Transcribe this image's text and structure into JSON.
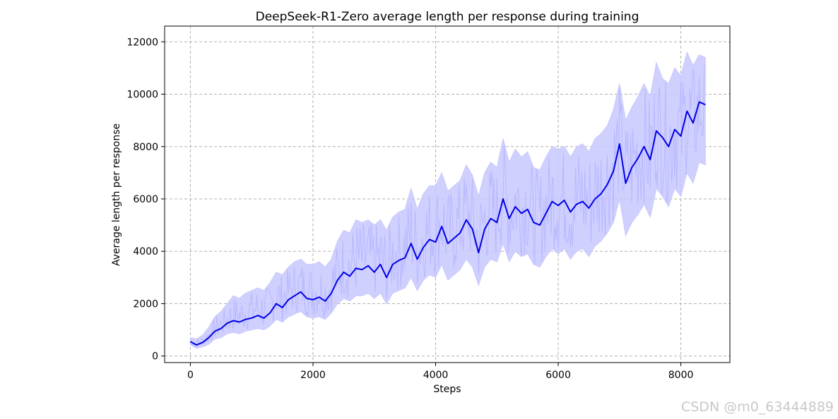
{
  "watermark": "CSDN @m0_63444889",
  "chart_data": {
    "type": "line",
    "title": "DeepSeek-R1-Zero average length per response during training",
    "xlabel": "Steps",
    "ylabel": "Average length per response",
    "xlim": [
      -420,
      8800
    ],
    "ylim": [
      -250,
      12600
    ],
    "xticks": [
      0,
      2000,
      4000,
      6000,
      8000
    ],
    "yticks": [
      0,
      2000,
      4000,
      6000,
      8000,
      10000,
      12000
    ],
    "grid": true,
    "colors": {
      "smoothed": "#0000e6",
      "band": "#c8c8ff",
      "grid": "#b0b0b0"
    },
    "series": [
      {
        "role": "smoothed",
        "x": [
          0,
          100,
          200,
          300,
          400,
          500,
          600,
          700,
          800,
          900,
          1000,
          1100,
          1200,
          1300,
          1400,
          1500,
          1600,
          1700,
          1800,
          1900,
          2000,
          2100,
          2200,
          2300,
          2400,
          2500,
          2600,
          2700,
          2800,
          2900,
          3000,
          3100,
          3200,
          3300,
          3400,
          3500,
          3600,
          3700,
          3800,
          3900,
          4000,
          4100,
          4200,
          4300,
          4400,
          4500,
          4600,
          4700,
          4800,
          4900,
          5000,
          5100,
          5200,
          5300,
          5400,
          5500,
          5600,
          5700,
          5800,
          5900,
          6000,
          6100,
          6200,
          6300,
          6400,
          6500,
          6600,
          6700,
          6800,
          6900,
          7000,
          7100,
          7200,
          7300,
          7400,
          7500,
          7600,
          7700,
          7800,
          7900,
          8000,
          8100,
          8200,
          8300,
          8400
        ],
        "y": [
          550,
          420,
          520,
          700,
          950,
          1050,
          1250,
          1350,
          1300,
          1400,
          1450,
          1550,
          1450,
          1650,
          2000,
          1850,
          2150,
          2300,
          2450,
          2200,
          2150,
          2250,
          2100,
          2400,
          2900,
          3200,
          3050,
          3350,
          3300,
          3450,
          3200,
          3500,
          3000,
          3500,
          3650,
          3750,
          4300,
          3700,
          4150,
          4450,
          4350,
          4950,
          4300,
          4500,
          4700,
          5200,
          4850,
          3950,
          4850,
          5250,
          5100,
          6000,
          5250,
          5700,
          5450,
          5600,
          5100,
          5000,
          5450,
          5900,
          5750,
          5950,
          5500,
          5800,
          5900,
          5650,
          6000,
          6200,
          6550,
          7050,
          8100,
          6600,
          7200,
          7550,
          8000,
          7500,
          8600,
          8350,
          8000,
          8650,
          8400,
          9350,
          8900,
          9700,
          9600
        ]
      },
      {
        "role": "band",
        "x": [
          0,
          100,
          200,
          300,
          400,
          500,
          600,
          700,
          800,
          900,
          1000,
          1100,
          1200,
          1300,
          1400,
          1500,
          1600,
          1700,
          1800,
          1900,
          2000,
          2100,
          2200,
          2300,
          2400,
          2500,
          2600,
          2700,
          2800,
          2900,
          3000,
          3100,
          3200,
          3300,
          3400,
          3500,
          3600,
          3700,
          3800,
          3900,
          4000,
          4100,
          4200,
          4300,
          4400,
          4500,
          4600,
          4700,
          4800,
          4900,
          5000,
          5100,
          5200,
          5300,
          5400,
          5500,
          5600,
          5700,
          5800,
          5900,
          6000,
          6100,
          6200,
          6300,
          6400,
          6500,
          6600,
          6700,
          6800,
          6900,
          7000,
          7100,
          7200,
          7300,
          7400,
          7500,
          7600,
          7700,
          7800,
          7900,
          8000,
          8100,
          8200,
          8300,
          8400
        ],
        "upper": [
          700,
          650,
          800,
          1100,
          1500,
          1700,
          2000,
          2300,
          2200,
          2400,
          2500,
          2600,
          2500,
          2800,
          3200,
          3100,
          3400,
          3600,
          3700,
          3500,
          3500,
          3600,
          3400,
          3700,
          4400,
          4800,
          4700,
          5200,
          5100,
          5200,
          5000,
          5200,
          4800,
          5300,
          5500,
          5600,
          6400,
          5600,
          6200,
          6500,
          6500,
          7000,
          6300,
          6500,
          6700,
          7300,
          6900,
          6100,
          7000,
          7400,
          7200,
          8300,
          7400,
          7900,
          7600,
          7800,
          7200,
          7100,
          7600,
          8000,
          7900,
          8000,
          7600,
          8000,
          8100,
          7800,
          8300,
          8500,
          8800,
          9400,
          10400,
          9000,
          9500,
          9900,
          10400,
          9900,
          11200,
          10600,
          10400,
          11000,
          10700,
          11600,
          11100,
          11500,
          11400
        ],
        "lower": [
          420,
          300,
          350,
          450,
          650,
          700,
          850,
          900,
          850,
          950,
          1000,
          1050,
          1000,
          1150,
          1400,
          1300,
          1500,
          1600,
          1700,
          1500,
          1450,
          1500,
          1400,
          1650,
          2000,
          2200,
          2100,
          2300,
          2300,
          2400,
          2200,
          2400,
          2000,
          2400,
          2500,
          2600,
          3000,
          2500,
          2900,
          3100,
          3000,
          3500,
          2900,
          3100,
          3300,
          3700,
          3400,
          2700,
          3400,
          3700,
          3600,
          4300,
          3600,
          4000,
          3800,
          3900,
          3500,
          3400,
          3800,
          4100,
          3900,
          4100,
          3700,
          4000,
          4100,
          3800,
          4200,
          4400,
          4700,
          5100,
          6000,
          4600,
          5100,
          5400,
          5800,
          5300,
          6400,
          6100,
          5700,
          6400,
          6100,
          7000,
          6600,
          7400,
          7300
        ]
      }
    ]
  }
}
